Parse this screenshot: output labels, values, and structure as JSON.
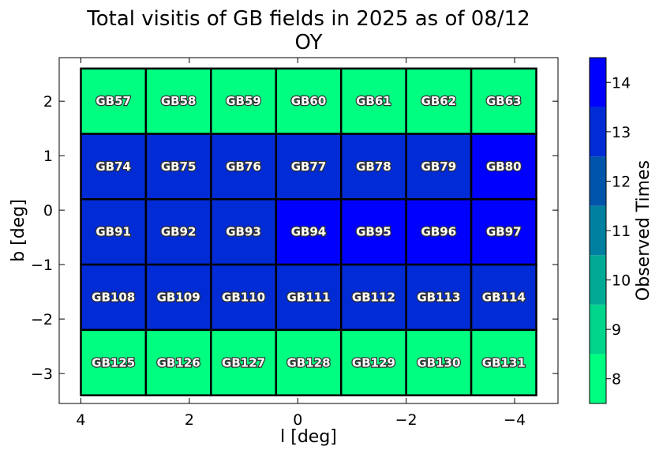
{
  "chart_data": {
    "type": "heatmap",
    "title_lines": [
      "Total visitis of GB fields in 2025 as of 08/12",
      "OY"
    ],
    "xlabel": "l [deg]",
    "ylabel": "b [deg]",
    "colorbar_label": "Observed Times",
    "xlim": [
      4.4,
      -4.8
    ],
    "ylim": [
      -3.55,
      2.8
    ],
    "x_ticks": [
      4,
      2,
      0,
      -2,
      -4
    ],
    "x_tick_labels": [
      "4",
      "2",
      "0",
      "−2",
      "−4"
    ],
    "y_ticks": [
      2,
      1,
      0,
      -1,
      -2,
      -3
    ],
    "y_tick_labels": [
      "2",
      "1",
      "0",
      "−1",
      "−2",
      "−3"
    ],
    "l_edges": [
      4.0,
      2.8,
      1.6,
      0.4,
      -0.8,
      -2.0,
      -3.2,
      -4.4
    ],
    "b_edges": [
      2.6,
      1.4,
      0.2,
      -1.0,
      -2.2,
      -3.4
    ],
    "fields": [
      [
        "GB57",
        "GB58",
        "GB59",
        "GB60",
        "GB61",
        "GB62",
        "GB63"
      ],
      [
        "GB74",
        "GB75",
        "GB76",
        "GB77",
        "GB78",
        "GB79",
        "GB80"
      ],
      [
        "GB91",
        "GB92",
        "GB93",
        "GB94",
        "GB95",
        "GB96",
        "GB97"
      ],
      [
        "GB108",
        "GB109",
        "GB110",
        "GB111",
        "GB112",
        "GB113",
        "GB114"
      ],
      [
        "GB125",
        "GB126",
        "GB127",
        "GB128",
        "GB129",
        "GB130",
        "GB131"
      ]
    ],
    "values": [
      [
        8,
        8,
        8,
        8,
        8,
        8,
        8
      ],
      [
        13,
        13,
        13,
        13,
        13,
        13,
        14
      ],
      [
        13,
        13,
        13,
        14,
        14,
        14,
        14
      ],
      [
        13,
        13,
        13,
        13,
        13,
        13,
        13
      ],
      [
        8,
        8,
        8,
        8,
        8,
        8,
        8
      ]
    ],
    "colorbar": {
      "range": [
        7.5,
        14.5
      ],
      "ticks": [
        8,
        9,
        10,
        11,
        12,
        13,
        14
      ],
      "bins": [
        {
          "value": 8,
          "color": "#00ff80"
        },
        {
          "value": 9,
          "color": "#00d58b"
        },
        {
          "value": 10,
          "color": "#00aa95"
        },
        {
          "value": 11,
          "color": "#0080a0"
        },
        {
          "value": 12,
          "color": "#0055aa"
        },
        {
          "value": 13,
          "color": "#002bd5"
        },
        {
          "value": 14,
          "color": "#0000ff"
        }
      ]
    }
  }
}
